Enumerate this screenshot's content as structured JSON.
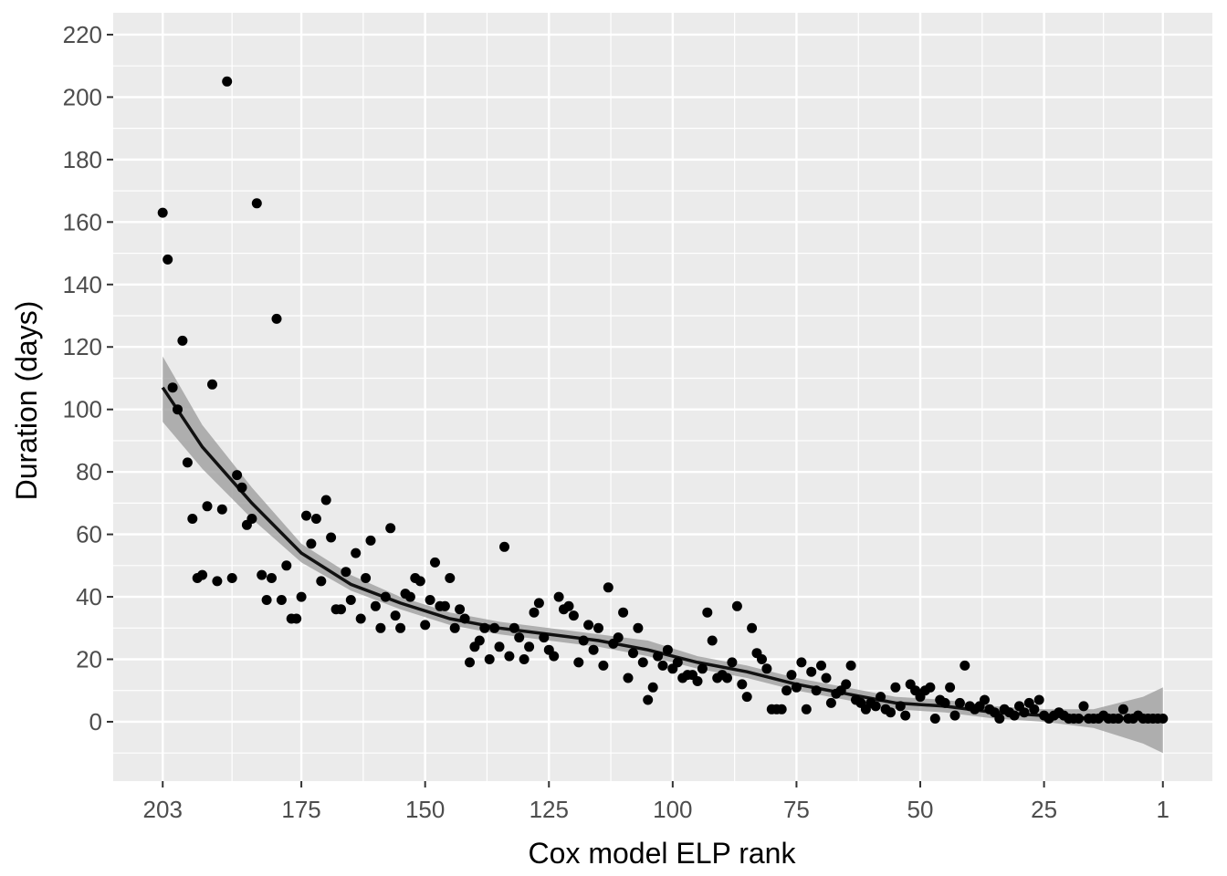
{
  "chart_data": {
    "type": "scatter",
    "xlabel": "Cox model ELP rank",
    "ylabel": "Duration (days)",
    "x_reversed": true,
    "xlim": [
      213,
      -9
    ],
    "ylim": [
      -19,
      227
    ],
    "x_ticks": [
      203,
      175,
      150,
      125,
      100,
      75,
      50,
      25,
      1
    ],
    "y_ticks": [
      0,
      20,
      40,
      60,
      80,
      100,
      120,
      140,
      160,
      180,
      200,
      220
    ],
    "grid": true,
    "legend": "none",
    "colors": {
      "panel": "#ebebeb",
      "grid": "#ffffff",
      "points": "#000000",
      "ribbon": "#999999"
    },
    "points": [
      [
        203,
        163
      ],
      [
        202,
        148
      ],
      [
        201,
        107
      ],
      [
        200,
        100
      ],
      [
        199,
        122
      ],
      [
        198,
        83
      ],
      [
        197,
        65
      ],
      [
        196,
        46
      ],
      [
        195,
        47
      ],
      [
        194,
        69
      ],
      [
        193,
        108
      ],
      [
        192,
        45
      ],
      [
        191,
        68
      ],
      [
        190,
        205
      ],
      [
        189,
        46
      ],
      [
        188,
        79
      ],
      [
        187,
        75
      ],
      [
        186,
        63
      ],
      [
        185,
        65
      ],
      [
        184,
        166
      ],
      [
        183,
        47
      ],
      [
        182,
        39
      ],
      [
        181,
        46
      ],
      [
        180,
        129
      ],
      [
        179,
        39
      ],
      [
        178,
        50
      ],
      [
        177,
        33
      ],
      [
        176,
        33
      ],
      [
        175,
        40
      ],
      [
        174,
        66
      ],
      [
        173,
        57
      ],
      [
        172,
        65
      ],
      [
        171,
        45
      ],
      [
        170,
        71
      ],
      [
        169,
        59
      ],
      [
        168,
        36
      ],
      [
        167,
        36
      ],
      [
        166,
        48
      ],
      [
        165,
        39
      ],
      [
        164,
        54
      ],
      [
        163,
        33
      ],
      [
        162,
        46
      ],
      [
        161,
        58
      ],
      [
        160,
        37
      ],
      [
        159,
        30
      ],
      [
        158,
        40
      ],
      [
        157,
        62
      ],
      [
        156,
        34
      ],
      [
        155,
        30
      ],
      [
        154,
        41
      ],
      [
        153,
        40
      ],
      [
        152,
        46
      ],
      [
        151,
        45
      ],
      [
        150,
        31
      ],
      [
        149,
        39
      ],
      [
        148,
        51
      ],
      [
        147,
        37
      ],
      [
        146,
        37
      ],
      [
        145,
        46
      ],
      [
        144,
        30
      ],
      [
        143,
        36
      ],
      [
        142,
        33
      ],
      [
        141,
        19
      ],
      [
        140,
        24
      ],
      [
        139,
        26
      ],
      [
        138,
        30
      ],
      [
        137,
        20
      ],
      [
        136,
        30
      ],
      [
        135,
        24
      ],
      [
        134,
        56
      ],
      [
        133,
        21
      ],
      [
        132,
        30
      ],
      [
        131,
        27
      ],
      [
        130,
        20
      ],
      [
        129,
        24
      ],
      [
        128,
        35
      ],
      [
        127,
        38
      ],
      [
        126,
        27
      ],
      [
        125,
        23
      ],
      [
        124,
        21
      ],
      [
        123,
        40
      ],
      [
        122,
        36
      ],
      [
        121,
        37
      ],
      [
        120,
        34
      ],
      [
        119,
        19
      ],
      [
        118,
        26
      ],
      [
        117,
        31
      ],
      [
        116,
        23
      ],
      [
        115,
        30
      ],
      [
        114,
        18
      ],
      [
        113,
        43
      ],
      [
        112,
        25
      ],
      [
        111,
        27
      ],
      [
        110,
        35
      ],
      [
        109,
        14
      ],
      [
        108,
        22
      ],
      [
        107,
        30
      ],
      [
        106,
        19
      ],
      [
        105,
        7
      ],
      [
        104,
        11
      ],
      [
        103,
        21
      ],
      [
        102,
        18
      ],
      [
        101,
        23
      ],
      [
        100,
        17
      ],
      [
        99,
        19
      ],
      [
        98,
        14
      ],
      [
        97,
        15
      ],
      [
        96,
        15
      ],
      [
        95,
        13
      ],
      [
        94,
        17
      ],
      [
        93,
        35
      ],
      [
        92,
        26
      ],
      [
        91,
        14
      ],
      [
        90,
        15
      ],
      [
        89,
        14
      ],
      [
        88,
        19
      ],
      [
        87,
        37
      ],
      [
        86,
        12
      ],
      [
        85,
        8
      ],
      [
        84,
        30
      ],
      [
        83,
        22
      ],
      [
        82,
        20
      ],
      [
        81,
        17
      ],
      [
        80,
        4
      ],
      [
        79,
        4
      ],
      [
        78,
        4
      ],
      [
        77,
        10
      ],
      [
        76,
        15
      ],
      [
        75,
        11
      ],
      [
        74,
        19
      ],
      [
        73,
        4
      ],
      [
        72,
        16
      ],
      [
        71,
        10
      ],
      [
        70,
        18
      ],
      [
        69,
        14
      ],
      [
        68,
        6
      ],
      [
        67,
        9
      ],
      [
        66,
        10
      ],
      [
        65,
        12
      ],
      [
        64,
        18
      ],
      [
        63,
        7
      ],
      [
        62,
        6
      ],
      [
        61,
        4
      ],
      [
        60,
        6
      ],
      [
        59,
        5
      ],
      [
        58,
        8
      ],
      [
        57,
        4
      ],
      [
        56,
        3
      ],
      [
        55,
        11
      ],
      [
        54,
        5
      ],
      [
        53,
        2
      ],
      [
        52,
        12
      ],
      [
        51,
        10
      ],
      [
        50,
        8
      ],
      [
        49,
        10
      ],
      [
        48,
        11
      ],
      [
        47,
        1
      ],
      [
        46,
        7
      ],
      [
        45,
        6
      ],
      [
        44,
        11
      ],
      [
        43,
        2
      ],
      [
        42,
        6
      ],
      [
        41,
        18
      ],
      [
        40,
        5
      ],
      [
        39,
        4
      ],
      [
        38,
        5
      ],
      [
        37,
        7
      ],
      [
        36,
        4
      ],
      [
        35,
        3
      ],
      [
        34,
        1
      ],
      [
        33,
        4
      ],
      [
        32,
        3
      ],
      [
        31,
        2
      ],
      [
        30,
        5
      ],
      [
        29,
        3
      ],
      [
        28,
        6
      ],
      [
        27,
        4
      ],
      [
        26,
        7
      ],
      [
        25,
        2
      ],
      [
        24,
        1
      ],
      [
        23,
        2
      ],
      [
        22,
        3
      ],
      [
        21,
        2
      ],
      [
        20,
        1
      ],
      [
        19,
        1
      ],
      [
        18,
        1
      ],
      [
        17,
        5
      ],
      [
        16,
        1
      ],
      [
        15,
        1
      ],
      [
        14,
        1
      ],
      [
        13,
        2
      ],
      [
        12,
        1
      ],
      [
        11,
        1
      ],
      [
        10,
        1
      ],
      [
        9,
        4
      ],
      [
        8,
        1
      ],
      [
        7,
        1
      ],
      [
        6,
        2
      ],
      [
        5,
        1
      ],
      [
        4,
        1
      ],
      [
        3,
        1
      ],
      [
        2,
        1
      ],
      [
        1,
        1
      ]
    ],
    "trend": {
      "x": [
        203,
        195,
        185,
        175,
        165,
        155,
        145,
        135,
        125,
        115,
        105,
        95,
        85,
        75,
        65,
        55,
        45,
        35,
        25,
        15,
        5,
        1
      ],
      "y": [
        107,
        88,
        70,
        54,
        44,
        38,
        33,
        30,
        28,
        26,
        23,
        19,
        16,
        12,
        9,
        6,
        5,
        3,
        2,
        1,
        1,
        1
      ],
      "ci_lower": [
        96,
        81,
        65,
        51,
        42,
        36,
        31,
        28,
        26,
        24,
        21,
        17,
        14,
        10,
        7,
        4,
        3,
        1,
        0,
        -2,
        -7,
        -10
      ],
      "ci_upper": [
        117,
        95,
        75,
        57,
        47,
        40,
        35,
        32,
        30,
        28,
        26,
        21,
        18,
        14,
        11,
        8,
        7,
        5,
        4,
        4,
        8,
        11
      ]
    }
  }
}
